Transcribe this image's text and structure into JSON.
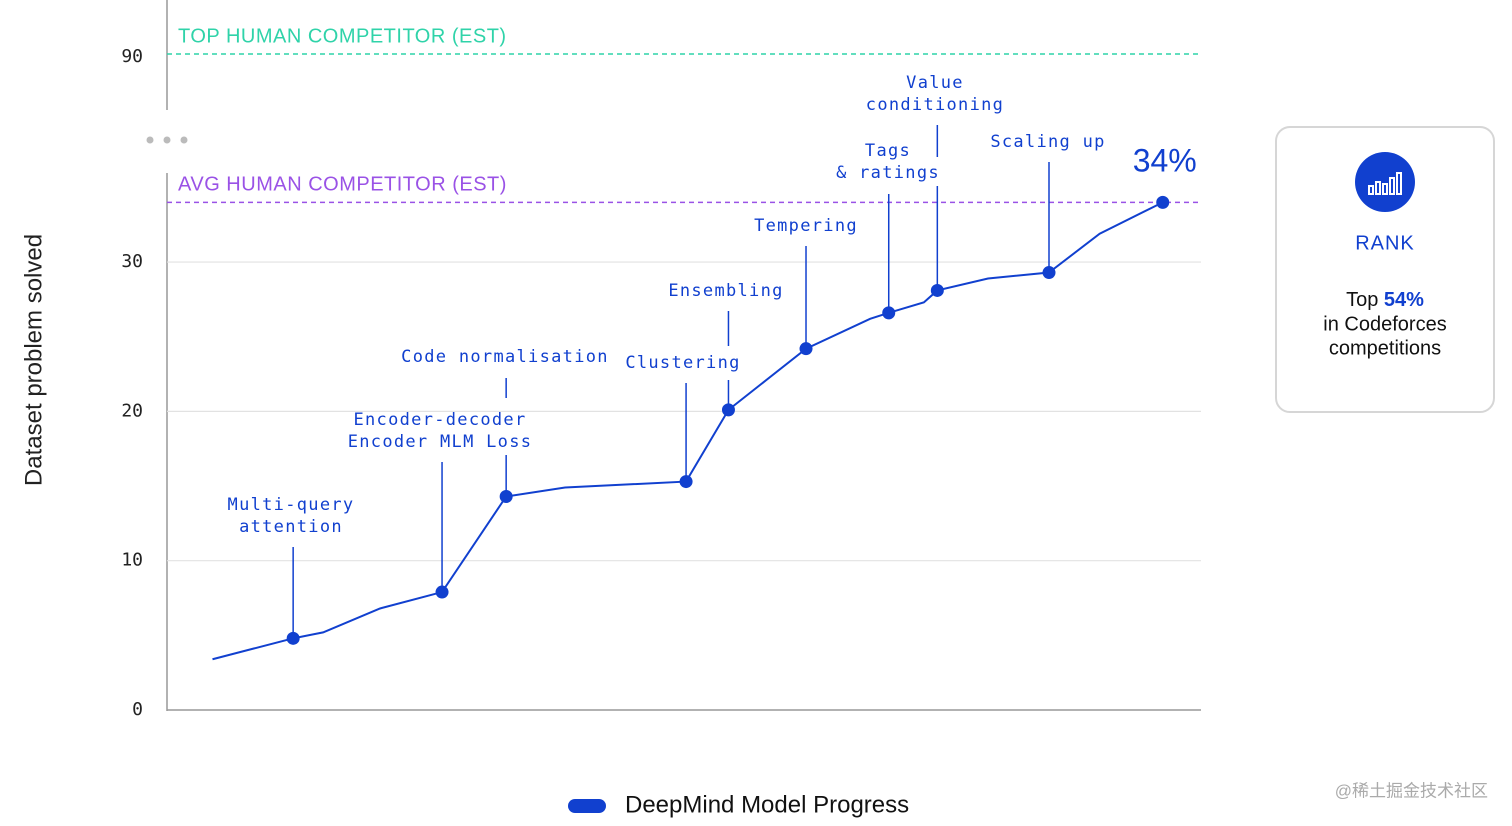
{
  "chart_data": {
    "type": "line",
    "y_label": "Dataset problem solved",
    "x": [
      4.4,
      12.2,
      15.1,
      20.6,
      26.6,
      32.8,
      38.5,
      50.2,
      54.3,
      61.8,
      68.0,
      69.8,
      73.2,
      74.5,
      79.4,
      85.3,
      90.2,
      96.3
    ],
    "xlim": [
      0,
      100
    ],
    "ylim": [
      0,
      36
    ],
    "yticks": [
      0,
      10,
      20,
      30
    ],
    "upper_ylim": [
      88,
      92
    ],
    "upper_yticks": [
      90
    ],
    "grid": true,
    "series": [
      {
        "name": "DeepMind Model Progress",
        "color": "#1140cf",
        "values": [
          3.4,
          4.8,
          5.2,
          6.8,
          7.9,
          14.3,
          14.9,
          15.3,
          20.1,
          24.2,
          26.2,
          26.6,
          27.3,
          28.1,
          28.9,
          29.3,
          31.9,
          34
        ]
      }
    ],
    "reference_lines": [
      {
        "label": "TOP HUMAN COMPETITOR (EST)",
        "value": 90,
        "color": "#2fd3a9"
      },
      {
        "label": "AVG HUMAN COMPETITOR (EST)",
        "value": 34,
        "color": "#9a52e6"
      }
    ],
    "end_label": "34%",
    "annotations": [
      {
        "lines": [
          "Multi-query",
          "attention"
        ],
        "index": 1
      },
      {
        "lines": [
          "Encoder-decoder",
          "Encoder MLM Loss"
        ],
        "index": 4
      },
      {
        "lines": [
          "Code normalisation"
        ],
        "index": 5
      },
      {
        "lines": [
          "Clustering"
        ],
        "index": 7
      },
      {
        "lines": [
          "Ensembling"
        ],
        "index": 8
      },
      {
        "lines": [
          "Tempering"
        ],
        "index": 9
      },
      {
        "lines": [
          "Tags",
          "& ratings"
        ],
        "index": 11
      },
      {
        "lines": [
          "Value",
          "conditioning"
        ],
        "index": 13
      },
      {
        "lines": [
          "Scaling up"
        ],
        "index": 15
      }
    ],
    "legend": "bottom"
  },
  "card": {
    "title": "RANK",
    "top_prefix": "Top",
    "top_value": "54%",
    "lines": [
      "in Codeforces",
      "competitions"
    ]
  },
  "watermark": "@稀土掘金技术社区"
}
